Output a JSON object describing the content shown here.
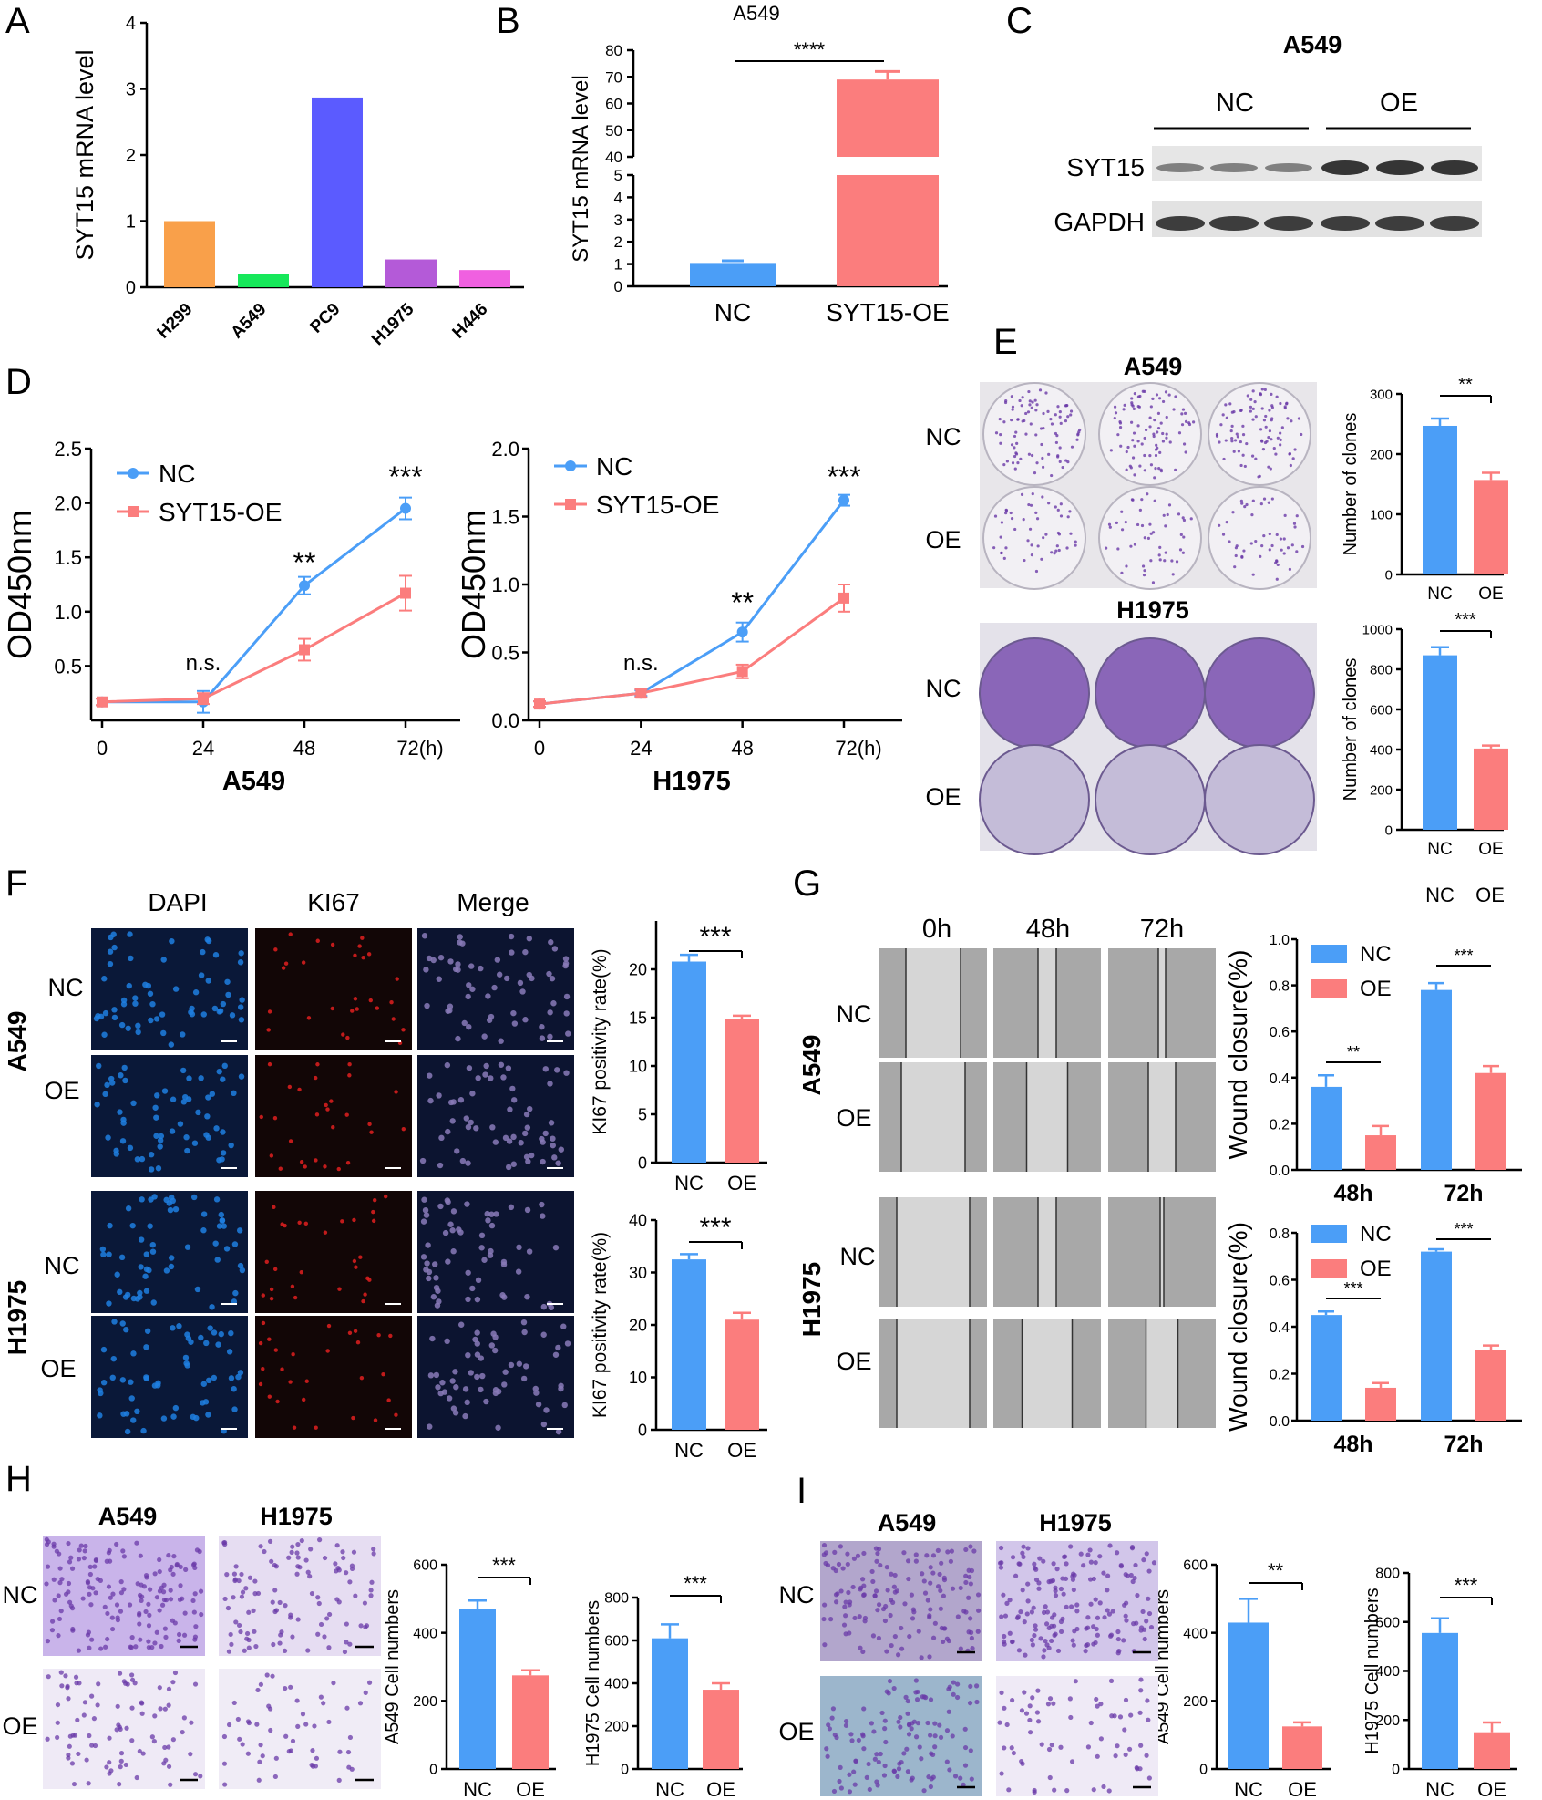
{
  "colors": {
    "nc": "#4b9ef7",
    "oe": "#fb7d7d",
    "blot_band": "#2b2b2b",
    "crystal_violet": "#6a3aa8",
    "dapi": "#1f7fe0",
    "ki67": "#e02020",
    "bg": "#ffffff"
  },
  "panels": {
    "A": {
      "letter": "A"
    },
    "B": {
      "letter": "B"
    },
    "C": {
      "letter": "C",
      "title": "A549",
      "group_nc": "NC",
      "group_oe": "OE",
      "row1": "SYT15",
      "row2": "GAPDH"
    },
    "D": {
      "letter": "D"
    },
    "E": {
      "letter": "E",
      "title_top": "A549",
      "title_bottom": "H1975",
      "row_nc": "NC",
      "row_oe": "OE",
      "row_nc2": "NC",
      "row_oe2": "OE"
    },
    "F": {
      "letter": "F",
      "col1": "DAPI",
      "col2": "KI67",
      "col3": "Merge",
      "cell1": "A549",
      "cell2": "H1975",
      "row_nc": "NC",
      "row_oe": "OE",
      "row_nc2": "NC",
      "row_oe2": "OE"
    },
    "G": {
      "letter": "G",
      "t0": "0h",
      "t48": "48h",
      "t72": "72h",
      "cell1": "A549",
      "cell2": "H1975",
      "row_nc": "NC",
      "row_oe": "OE",
      "row_nc2": "NC",
      "row_oe2": "OE",
      "stray_nc": "NC",
      "stray_oe": "OE"
    },
    "H": {
      "letter": "H",
      "col1": "A549",
      "col2": "H1975",
      "row_nc": "NC",
      "row_oe": "OE"
    },
    "I": {
      "letter": "I",
      "col1": "A549",
      "col2": "H1975",
      "row_nc": "NC",
      "row_oe": "OE"
    }
  },
  "chart_data": [
    {
      "id": "A",
      "type": "bar",
      "ylabel": "SYT15 mRNA level",
      "categories": [
        "H299",
        "A549",
        "PC9",
        "H1975",
        "H446"
      ],
      "values": [
        1.0,
        0.2,
        2.87,
        0.42,
        0.26
      ],
      "bar_colors": [
        "#f9a04a",
        "#16e85a",
        "#5b5bff",
        "#b45ad8",
        "#f060e0"
      ],
      "ylim": [
        0,
        4
      ],
      "yticks": [
        0,
        1,
        2,
        3,
        4
      ]
    },
    {
      "id": "B",
      "type": "bar",
      "title": "A549",
      "ylabel": "SYT15 mRNA level",
      "categories": [
        "NC",
        "SYT15-OE"
      ],
      "values": [
        1.05,
        69
      ],
      "errors": [
        0.1,
        3
      ],
      "significance": "****",
      "axis_break": [
        5,
        40
      ],
      "yticks_lower": [
        0,
        1,
        2,
        3,
        4,
        5
      ],
      "yticks_upper": [
        40,
        50,
        60,
        70,
        80
      ]
    },
    {
      "id": "D1",
      "type": "line",
      "xlabel": "A549",
      "ylabel": "OD450nm",
      "x": [
        0,
        24,
        48,
        72
      ],
      "xtick_labels": [
        "0",
        "24",
        "48",
        "72(h)"
      ],
      "ylim": [
        0,
        2.5
      ],
      "yticks": [
        "0.5",
        "1.0",
        "1.5",
        "2.0",
        "2.5"
      ],
      "series": [
        {
          "name": "NC",
          "values": [
            0.17,
            0.17,
            1.24,
            1.95
          ],
          "errors": [
            0.03,
            0.1,
            0.08,
            0.1
          ]
        },
        {
          "name": "SYT15-OE",
          "values": [
            0.17,
            0.2,
            0.65,
            1.17
          ],
          "errors": [
            0.03,
            0.05,
            0.1,
            0.16
          ]
        }
      ],
      "annotations": [
        {
          "x": 24,
          "text": "n.s."
        },
        {
          "x": 48,
          "text": "**"
        },
        {
          "x": 72,
          "text": "***"
        }
      ]
    },
    {
      "id": "D2",
      "type": "line",
      "xlabel": "H1975",
      "ylabel": "OD450nm",
      "x": [
        0,
        24,
        48,
        72
      ],
      "xtick_labels": [
        "0",
        "24",
        "48",
        "72(h)"
      ],
      "ylim": [
        0,
        2.0
      ],
      "yticks": [
        "0.0",
        "0.5",
        "1.0",
        "1.5",
        "2.0"
      ],
      "series": [
        {
          "name": "NC",
          "values": [
            0.12,
            0.2,
            0.65,
            1.62
          ],
          "errors": [
            0.02,
            0.02,
            0.07,
            0.04
          ]
        },
        {
          "name": "SYT15-OE",
          "values": [
            0.12,
            0.2,
            0.36,
            0.9
          ],
          "errors": [
            0.02,
            0.03,
            0.05,
            0.1
          ]
        }
      ],
      "annotations": [
        {
          "x": 24,
          "text": "n.s."
        },
        {
          "x": 48,
          "text": "**"
        },
        {
          "x": 72,
          "text": "***"
        }
      ]
    },
    {
      "id": "E1",
      "type": "bar",
      "ylabel": "Number of clones",
      "categories": [
        "NC",
        "OE"
      ],
      "values": [
        247,
        157
      ],
      "errors": [
        12,
        12
      ],
      "ylim": [
        0,
        300
      ],
      "yticks": [
        0,
        100,
        200,
        300
      ],
      "significance": "**"
    },
    {
      "id": "E2",
      "type": "bar",
      "ylabel": "Number of clones",
      "categories": [
        "NC",
        "OE"
      ],
      "values": [
        870,
        405
      ],
      "errors": [
        40,
        15
      ],
      "ylim": [
        0,
        1000
      ],
      "yticks": [
        0,
        200,
        400,
        600,
        800,
        1000
      ],
      "significance": "***"
    },
    {
      "id": "F1",
      "type": "bar",
      "ylabel": "KI67 positivity rate(%)",
      "categories": [
        "NC",
        "OE"
      ],
      "values": [
        20.8,
        14.9
      ],
      "errors": [
        0.7,
        0.3
      ],
      "ylim": [
        0,
        25
      ],
      "yticks": [
        0,
        5,
        10,
        15,
        20
      ],
      "significance": "***"
    },
    {
      "id": "F2",
      "type": "bar",
      "ylabel": "KI67 positivity rate(%)",
      "categories": [
        "NC",
        "OE"
      ],
      "values": [
        32.5,
        21
      ],
      "errors": [
        1,
        1.3
      ],
      "ylim": [
        0,
        40
      ],
      "yticks": [
        0,
        10,
        20,
        30,
        40
      ],
      "significance": "***"
    },
    {
      "id": "G1",
      "type": "bar",
      "ylabel": "Wound closure(%)",
      "categories": [
        "48h",
        "72h"
      ],
      "series": [
        {
          "name": "NC",
          "values": [
            0.36,
            0.78
          ],
          "errors": [
            0.05,
            0.03
          ]
        },
        {
          "name": "OE",
          "values": [
            0.15,
            0.42
          ],
          "errors": [
            0.04,
            0.03
          ]
        }
      ],
      "ylim": [
        0,
        1.0
      ],
      "yticks": [
        "0.0",
        "0.2",
        "0.4",
        "0.6",
        "0.8",
        "1.0"
      ],
      "significance": [
        "**",
        "***"
      ]
    },
    {
      "id": "G2",
      "type": "bar",
      "ylabel": "Wound closure(%)",
      "categories": [
        "48h",
        "72h"
      ],
      "series": [
        {
          "name": "NC",
          "values": [
            0.45,
            0.72
          ],
          "errors": [
            0.015,
            0.01
          ]
        },
        {
          "name": "OE",
          "values": [
            0.14,
            0.3
          ],
          "errors": [
            0.02,
            0.02
          ]
        }
      ],
      "ylim": [
        0,
        0.8
      ],
      "yticks": [
        "0.0",
        "0.2",
        "0.4",
        "0.6",
        "0.8"
      ],
      "significance": [
        "***",
        "***"
      ]
    },
    {
      "id": "H1",
      "type": "bar",
      "ylabel": "A549 Cell numbers",
      "categories": [
        "NC",
        "OE"
      ],
      "values": [
        470,
        275
      ],
      "errors": [
        25,
        15
      ],
      "ylim": [
        0,
        600
      ],
      "yticks": [
        0,
        200,
        400,
        600
      ],
      "significance": "***"
    },
    {
      "id": "H2",
      "type": "bar",
      "ylabel": "H1975 Cell numbers",
      "categories": [
        "NC",
        "OE"
      ],
      "values": [
        610,
        370
      ],
      "errors": [
        65,
        30
      ],
      "ylim": [
        0,
        800
      ],
      "yticks": [
        0,
        200,
        400,
        600,
        800
      ],
      "significance": "***"
    },
    {
      "id": "I1",
      "type": "bar",
      "ylabel": "A549 Cell numbers",
      "categories": [
        "NC",
        "OE"
      ],
      "values": [
        430,
        125
      ],
      "errors": [
        70,
        12
      ],
      "ylim": [
        0,
        600
      ],
      "yticks": [
        0,
        200,
        400,
        600
      ],
      "significance": "**"
    },
    {
      "id": "I2",
      "type": "bar",
      "ylabel": "H1975 Cell numbers",
      "categories": [
        "NC",
        "OE"
      ],
      "values": [
        555,
        150
      ],
      "errors": [
        60,
        40
      ],
      "ylim": [
        0,
        800
      ],
      "yticks": [
        0,
        200,
        400,
        600,
        800
      ],
      "significance": "***"
    }
  ]
}
